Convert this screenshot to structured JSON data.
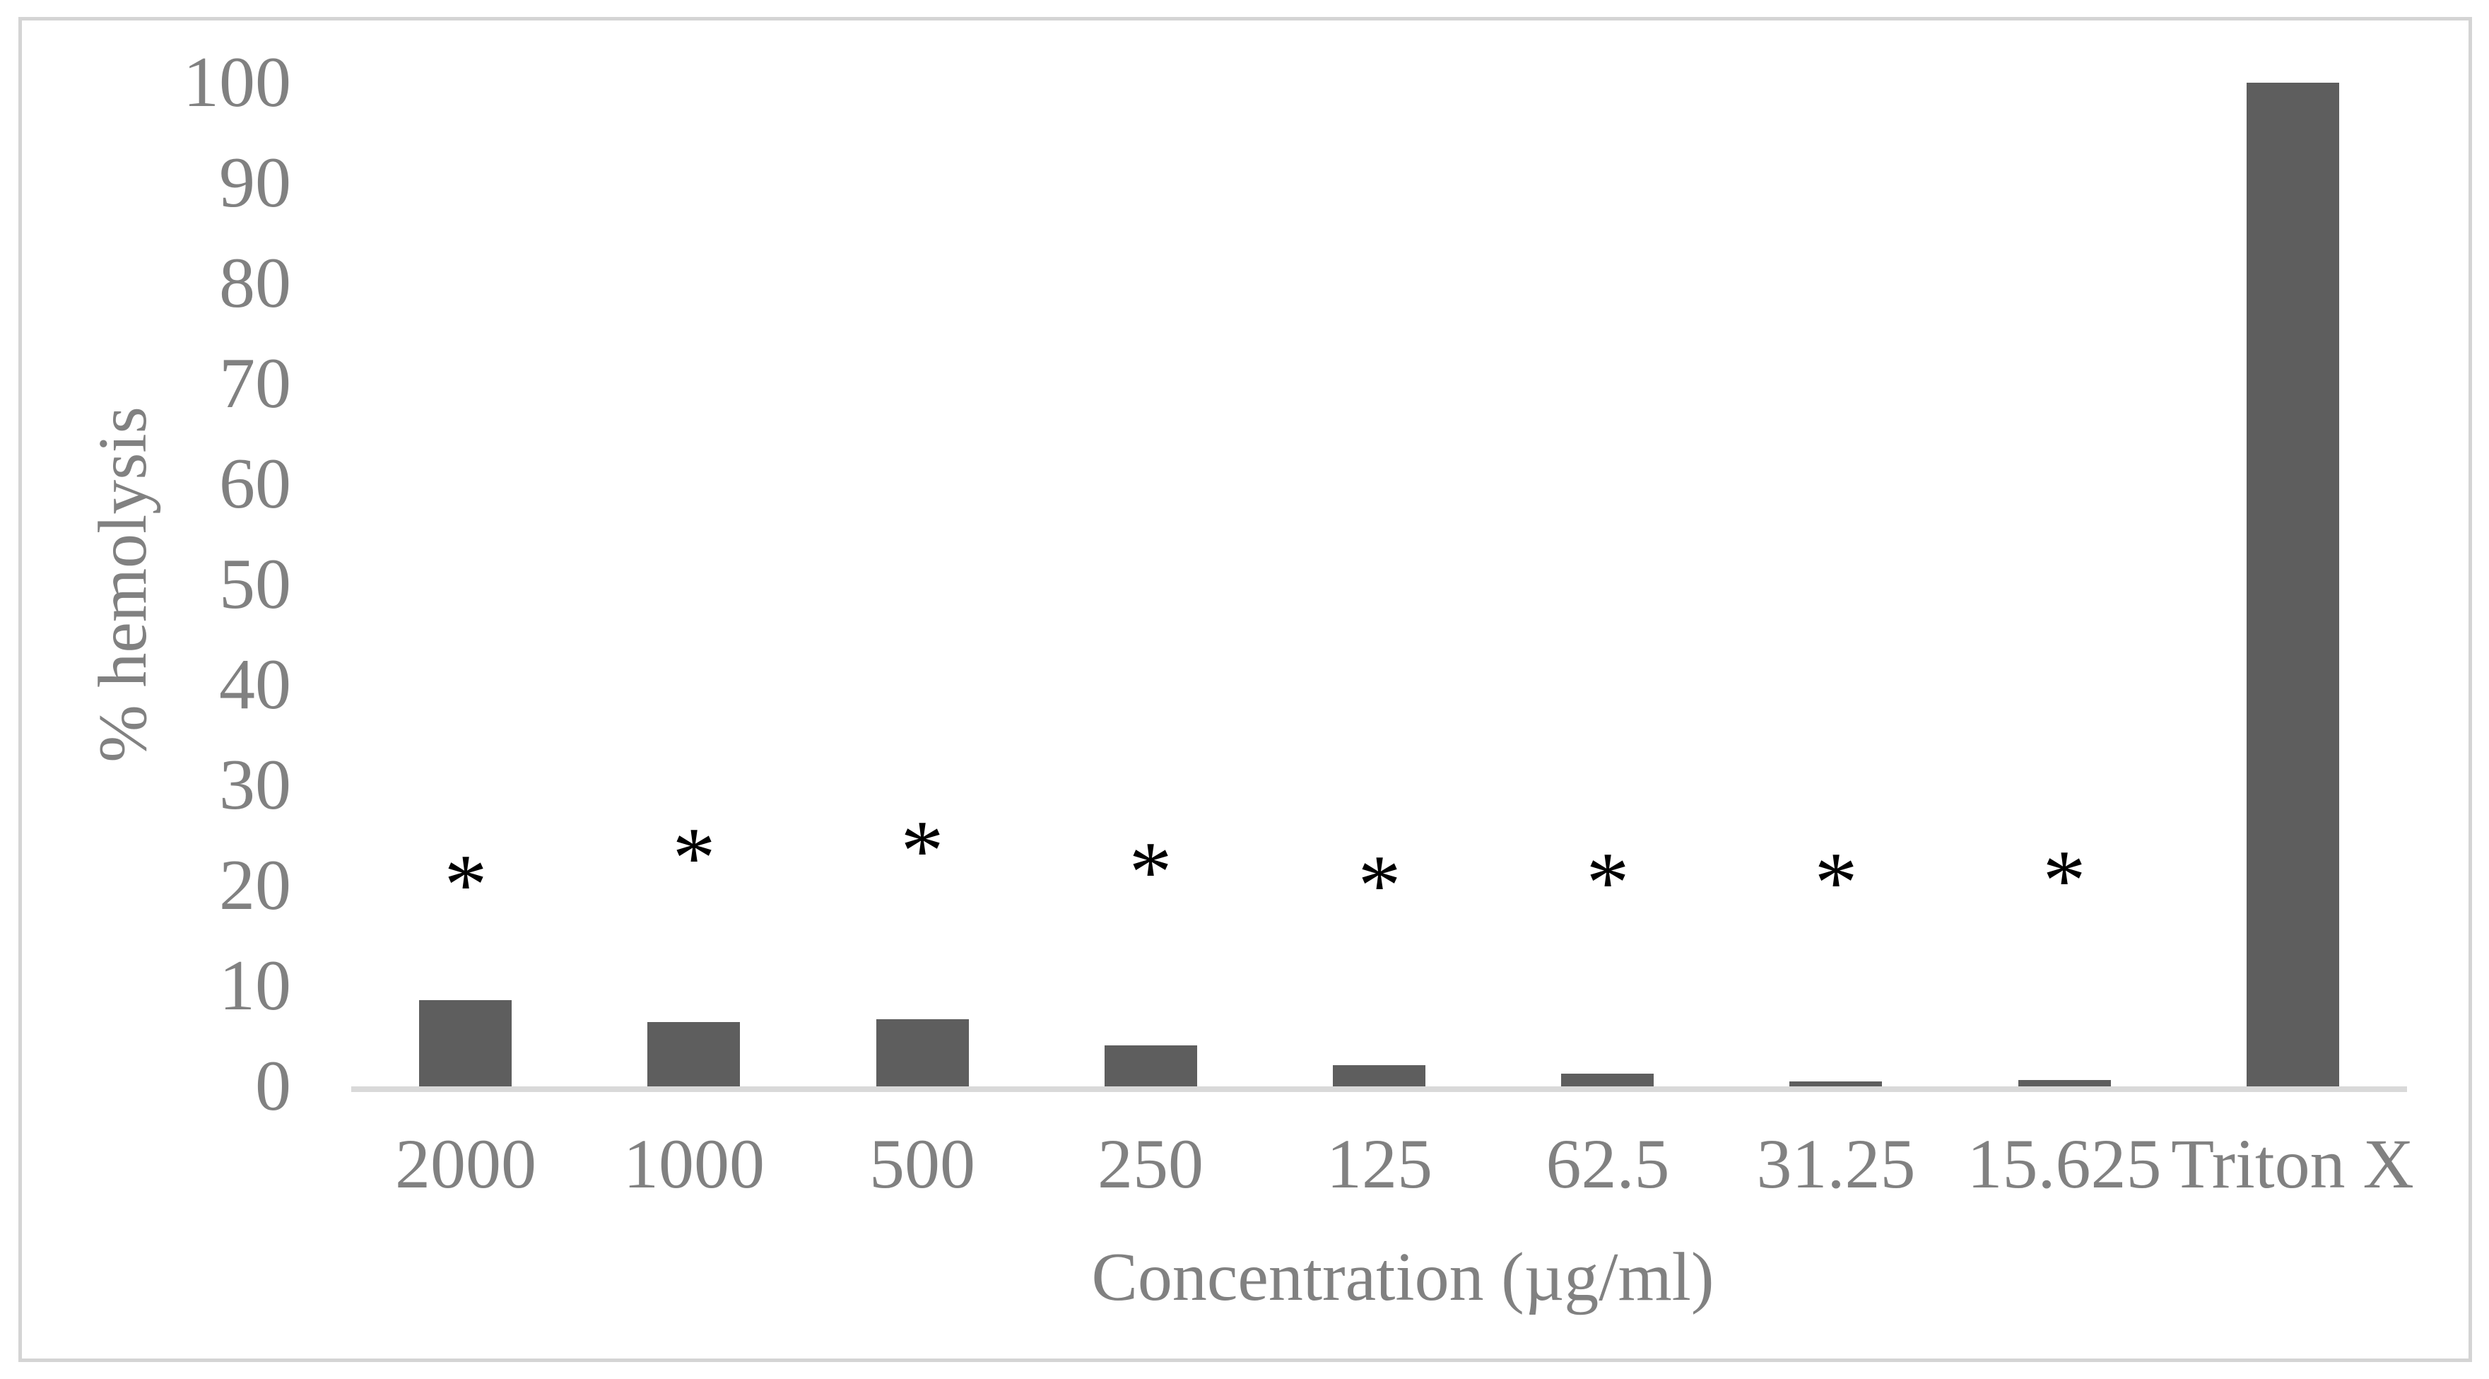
{
  "chart_data": {
    "type": "bar",
    "title": "",
    "xlabel": "Concentration (µg/ml)",
    "ylabel": "% hemolysis",
    "categories": [
      "2000",
      "1000",
      "500",
      "250",
      "125",
      "62.5",
      "31.25",
      "15.625",
      "Triton X"
    ],
    "values": [
      8.6,
      6.4,
      6.7,
      4.1,
      2.1,
      1.3,
      0.5,
      0.6,
      100
    ],
    "yticks": [
      0,
      10,
      20,
      30,
      40,
      50,
      60,
      70,
      80,
      90,
      100
    ],
    "ylim": [
      0,
      100
    ],
    "grid": false,
    "legend": "none",
    "annotations": [
      {
        "category_index": 0,
        "symbol": "*",
        "y": 21.2
      },
      {
        "category_index": 1,
        "symbol": "*",
        "y": 23.9
      },
      {
        "category_index": 2,
        "symbol": "*",
        "y": 24.6
      },
      {
        "category_index": 3,
        "symbol": "*",
        "y": 22.5
      },
      {
        "category_index": 4,
        "symbol": "*",
        "y": 21.1
      },
      {
        "category_index": 5,
        "symbol": "*",
        "y": 21.4
      },
      {
        "category_index": 6,
        "symbol": "*",
        "y": 21.4
      },
      {
        "category_index": 7,
        "symbol": "*",
        "y": 21.6
      }
    ],
    "colors": {
      "bar": "#5e5e5e",
      "axis_text": "#818181",
      "baseline": "#d9d9d9",
      "annotation": "#000000",
      "frame": "#d4d4d4",
      "background": "#ffffff"
    }
  }
}
